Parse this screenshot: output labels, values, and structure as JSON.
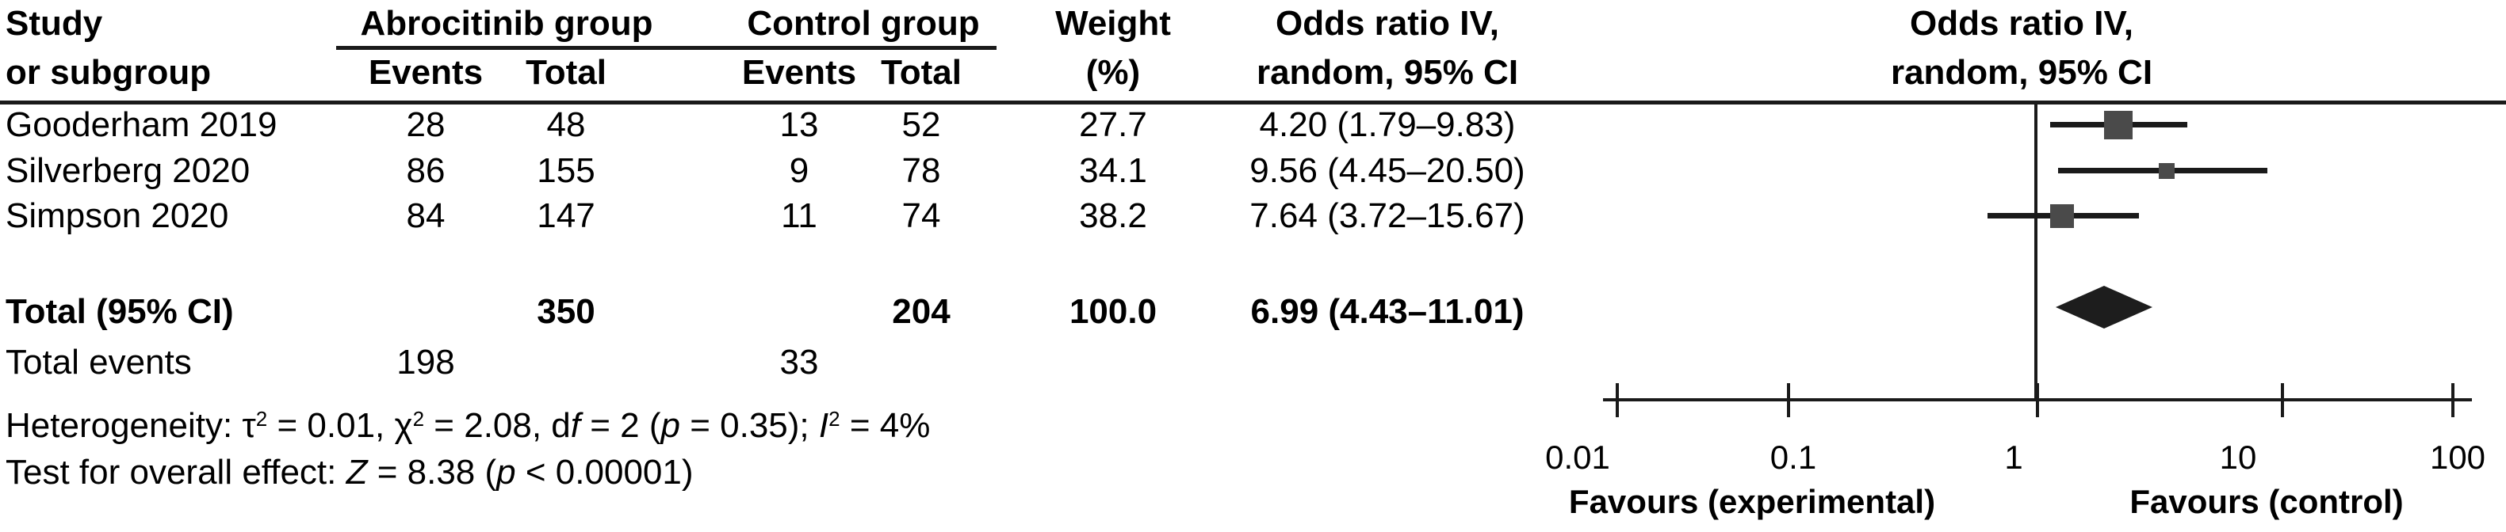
{
  "table": {
    "header": {
      "study_line1": "Study",
      "study_line2": "or subgroup",
      "group1": "Abrocitinib group",
      "group2": "Control group",
      "events": "Events",
      "total": "Total",
      "weight_line1": "Weight",
      "weight_line2": "(%)",
      "or_line1": "Odds ratio IV,",
      "or_line2": "random, 95% CI",
      "plot_line1": "Odds ratio IV,",
      "plot_line2": "random, 95% CI"
    },
    "rows": [
      {
        "study": "Gooderham 2019",
        "events1": "28",
        "total1": "48",
        "events2": "13",
        "total2": "52",
        "weight": "27.7",
        "or_ci": "4.20 (1.79–9.83)"
      },
      {
        "study": "Silverberg 2020",
        "events1": "86",
        "total1": "155",
        "events2": "9",
        "total2": "78",
        "weight": "34.1",
        "or_ci": "9.56 (4.45–20.50)"
      },
      {
        "study": "Simpson 2020",
        "events1": "84",
        "total1": "147",
        "events2": "11",
        "total2": "74",
        "weight": "38.2",
        "or_ci": "7.64 (3.72–15.67)"
      }
    ],
    "total_row": {
      "label": "Total (95% CI)",
      "total1": "350",
      "total2": "204",
      "weight": "100.0",
      "or_ci": "6.99 (4.43–11.01)"
    },
    "total_events": {
      "label": "Total events",
      "events1": "198",
      "events2": "33"
    }
  },
  "stats": {
    "heterogeneity_segments": [
      [
        "Heterogeneity: ",
        ""
      ],
      [
        "τ",
        ""
      ],
      [
        "2",
        "sup"
      ],
      [
        " = 0.01, ",
        ""
      ],
      [
        "χ",
        ""
      ],
      [
        "2",
        "sup"
      ],
      [
        " = 2.08, d",
        ""
      ],
      [
        "f",
        "it"
      ],
      [
        " = 2 (",
        ""
      ],
      [
        "p",
        "it"
      ],
      [
        " = 0.35); ",
        ""
      ],
      [
        "I",
        "it"
      ],
      [
        "2",
        "sup"
      ],
      [
        " = 4%",
        ""
      ]
    ],
    "overall_segments": [
      [
        "Test for overall effect: ",
        ""
      ],
      [
        "Z",
        "it"
      ],
      [
        " = 8.38 (",
        ""
      ],
      [
        "p",
        "it"
      ],
      [
        " < 0.00001)",
        ""
      ]
    ]
  },
  "chart_data": {
    "type": "forest",
    "effect_measure": "Odds ratio IV, random, 95% CI",
    "x_scale": "log",
    "xlim": [
      0.01,
      100
    ],
    "axis_ticks": [
      "0.01",
      "0.1",
      "1",
      "10",
      "100"
    ],
    "favours_left": "Favours (experimental)",
    "favours_right": "Favours (control)",
    "studies": [
      {
        "name": "Gooderham 2019",
        "events_exp": 28,
        "total_exp": 48,
        "events_ctrl": 13,
        "total_ctrl": 52,
        "weight_pct": 27.7,
        "or": 4.2,
        "ci_low": 1.79,
        "ci_high": 9.83
      },
      {
        "name": "Silverberg 2020",
        "events_exp": 86,
        "total_exp": 155,
        "events_ctrl": 9,
        "total_ctrl": 78,
        "weight_pct": 34.1,
        "or": 9.56,
        "ci_low": 4.45,
        "ci_high": 20.5
      },
      {
        "name": "Simpson 2020",
        "events_exp": 84,
        "total_exp": 147,
        "events_ctrl": 11,
        "total_ctrl": 74,
        "weight_pct": 38.2,
        "or": 7.64,
        "ci_low": 3.72,
        "ci_high": 15.67
      }
    ],
    "total": {
      "label": "Total (95% CI)",
      "total_exp": 350,
      "total_ctrl": 204,
      "weight_pct": 100.0,
      "or": 6.99,
      "ci_low": 4.43,
      "ci_high": 11.01
    },
    "total_events": {
      "experimental": 198,
      "control": 33
    },
    "heterogeneity": "τ2 = 0.01, χ2 = 2.08, df = 2 (p = 0.35); I2 = 4%",
    "overall_effect": "Z = 8.38 (p < 0.00001)",
    "colors": {
      "ci_line": "#1a1a1a",
      "square": "#4a4a4a",
      "diamond": "#1d1d1d",
      "axis": "#1a1a1a",
      "text": "#000000"
    },
    "plot_geometry": {
      "vline": {
        "x": 2566,
        "y1": 132,
        "y2": 507,
        "w": 4
      },
      "axis": {
        "x1": 2022,
        "x2": 3118,
        "y": 503,
        "h": 4
      },
      "ticks": {
        "xs": [
          2040,
          2256,
          2570,
          2879,
          3094
        ],
        "y": 484,
        "h": 43,
        "w": 4
      },
      "tick_labels": {
        "xs": [
          1990,
          2262,
          2540,
          2823,
          3100
        ],
        "cy": 578,
        "font": 42
      },
      "favours": {
        "left_cx": 2210,
        "right_cx": 2859,
        "cy": 634,
        "font": 42
      },
      "ci_h": 7,
      "rows": [
        {
          "y": 158,
          "ci_x1": 2586,
          "ci_x2": 2759,
          "sq_cx": 2672,
          "sq_size": 36
        },
        {
          "y": 216,
          "ci_x1": 2596,
          "ci_x2": 2860,
          "sq_cx": 2733,
          "sq_size": 20
        },
        {
          "y": 273,
          "ci_x1": 2507,
          "ci_x2": 2698,
          "sq_cx": 2601,
          "sq_size": 30
        }
      ],
      "diamond": {
        "cx": 2654,
        "cy": 388,
        "half_w": 61,
        "half_h": 27
      }
    }
  }
}
